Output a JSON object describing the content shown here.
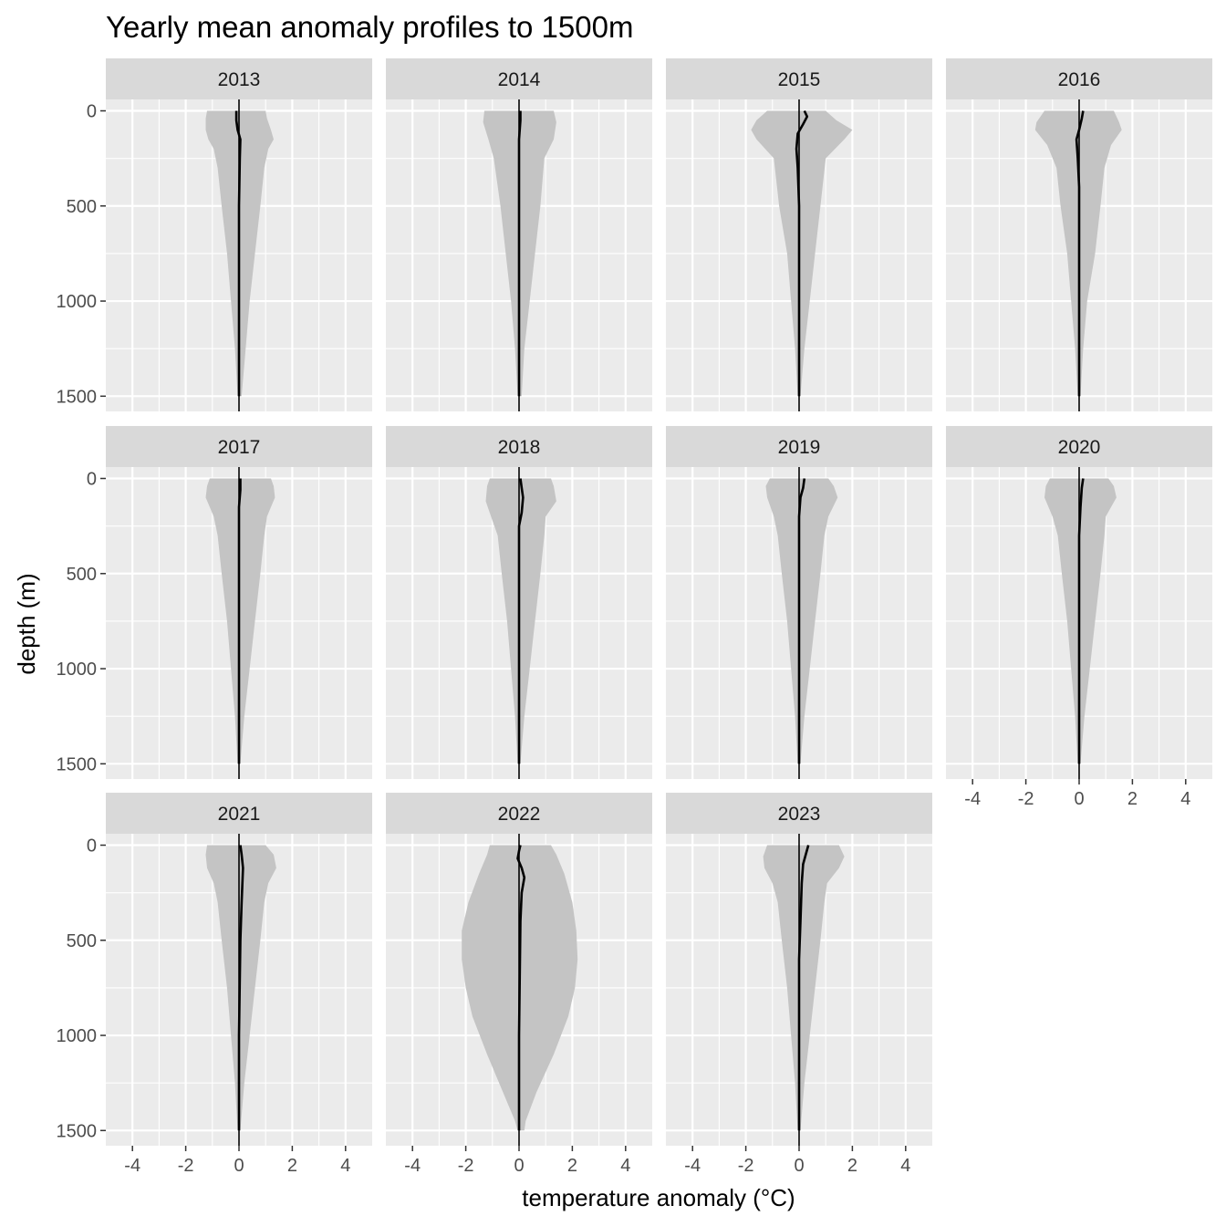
{
  "chart_data": {
    "type": "area",
    "title": "Yearly mean anomaly profiles to 1500m",
    "xlabel": "temperature anomaly (°C)",
    "ylabel": "depth (m)",
    "xlim": [
      -5,
      5
    ],
    "ylim": [
      -60,
      1580
    ],
    "y_reversed": true,
    "grid": true,
    "legend": "none",
    "x_ticks": [
      -4,
      -2,
      0,
      2,
      4
    ],
    "x_tick_labels": [
      "-4",
      "-2",
      "0",
      "2",
      "4"
    ],
    "y_ticks": [
      0,
      500,
      1000,
      1500
    ],
    "y_tick_labels": [
      "0",
      "500",
      "1000",
      "1500"
    ],
    "colors": {
      "panel_bg": "#ebebeb",
      "strip_bg": "#d9d9d9",
      "spread_fill": "#c4c4c4",
      "mean_line": "#000000",
      "grid": "#ffffff"
    },
    "series_description": [
      "spread envelope (shaded)",
      "mean anomaly profile (line)"
    ],
    "panels": [
      {
        "year": "2013",
        "envelope": [
          [
            0,
            -1.2,
            1.0
          ],
          [
            40,
            -1.25,
            1.05
          ],
          [
            100,
            -1.25,
            1.2
          ],
          [
            150,
            -1.15,
            1.3
          ],
          [
            200,
            -0.95,
            1.1
          ],
          [
            300,
            -0.8,
            0.95
          ],
          [
            500,
            -0.65,
            0.8
          ],
          [
            750,
            -0.45,
            0.6
          ],
          [
            1000,
            -0.3,
            0.4
          ],
          [
            1250,
            -0.15,
            0.25
          ],
          [
            1500,
            -0.05,
            0.1
          ]
        ],
        "mean": [
          [
            0,
            -0.1
          ],
          [
            50,
            -0.1
          ],
          [
            100,
            -0.05
          ],
          [
            150,
            0.05
          ],
          [
            250,
            0.03
          ],
          [
            500,
            0.0
          ],
          [
            1000,
            0.0
          ],
          [
            1500,
            0.0
          ]
        ]
      },
      {
        "year": "2014",
        "envelope": [
          [
            0,
            -1.3,
            1.3
          ],
          [
            60,
            -1.35,
            1.4
          ],
          [
            150,
            -1.15,
            1.3
          ],
          [
            250,
            -0.95,
            0.95
          ],
          [
            500,
            -0.7,
            0.8
          ],
          [
            750,
            -0.5,
            0.6
          ],
          [
            1000,
            -0.3,
            0.4
          ],
          [
            1250,
            -0.15,
            0.2
          ],
          [
            1500,
            -0.05,
            0.1
          ]
        ],
        "mean": [
          [
            0,
            0.05
          ],
          [
            50,
            0.05
          ],
          [
            150,
            0.0
          ],
          [
            300,
            0.0
          ],
          [
            1500,
            0.0
          ]
        ]
      },
      {
        "year": "2015",
        "envelope": [
          [
            0,
            -1.2,
            1.0
          ],
          [
            50,
            -1.6,
            1.4
          ],
          [
            100,
            -1.8,
            2.0
          ],
          [
            150,
            -1.6,
            1.7
          ],
          [
            250,
            -0.95,
            1.0
          ],
          [
            500,
            -0.75,
            0.8
          ],
          [
            750,
            -0.45,
            0.6
          ],
          [
            1000,
            -0.3,
            0.4
          ],
          [
            1250,
            -0.15,
            0.2
          ],
          [
            1500,
            -0.05,
            0.05
          ]
        ],
        "mean": [
          [
            0,
            0.2
          ],
          [
            30,
            0.3
          ],
          [
            70,
            0.15
          ],
          [
            120,
            -0.05
          ],
          [
            200,
            -0.1
          ],
          [
            300,
            -0.05
          ],
          [
            500,
            0.0
          ],
          [
            1000,
            0.0
          ],
          [
            1500,
            0.0
          ]
        ]
      },
      {
        "year": "2016",
        "envelope": [
          [
            0,
            -1.3,
            1.3
          ],
          [
            60,
            -1.6,
            1.5
          ],
          [
            100,
            -1.65,
            1.6
          ],
          [
            180,
            -1.2,
            1.2
          ],
          [
            300,
            -0.85,
            0.95
          ],
          [
            500,
            -0.7,
            0.8
          ],
          [
            750,
            -0.45,
            0.6
          ],
          [
            1000,
            -0.3,
            0.3
          ],
          [
            1250,
            -0.15,
            0.15
          ],
          [
            1500,
            -0.05,
            0.05
          ]
        ],
        "mean": [
          [
            0,
            0.15
          ],
          [
            40,
            0.1
          ],
          [
            100,
            0.0
          ],
          [
            150,
            -0.1
          ],
          [
            250,
            -0.05
          ],
          [
            400,
            0.0
          ],
          [
            1500,
            0.0
          ]
        ]
      },
      {
        "year": "2017",
        "envelope": [
          [
            0,
            -1.1,
            1.2
          ],
          [
            40,
            -1.2,
            1.3
          ],
          [
            100,
            -1.25,
            1.35
          ],
          [
            200,
            -0.95,
            1.05
          ],
          [
            300,
            -0.8,
            0.95
          ],
          [
            500,
            -0.65,
            0.8
          ],
          [
            750,
            -0.45,
            0.6
          ],
          [
            1000,
            -0.3,
            0.4
          ],
          [
            1250,
            -0.15,
            0.2
          ],
          [
            1500,
            -0.05,
            0.05
          ]
        ],
        "mean": [
          [
            0,
            0.05
          ],
          [
            60,
            0.05
          ],
          [
            150,
            0.0
          ],
          [
            300,
            0.0
          ],
          [
            1500,
            0.0
          ]
        ]
      },
      {
        "year": "2018",
        "envelope": [
          [
            0,
            -1.1,
            1.2
          ],
          [
            40,
            -1.2,
            1.3
          ],
          [
            120,
            -1.25,
            1.4
          ],
          [
            200,
            -1.05,
            1.0
          ],
          [
            300,
            -0.8,
            0.95
          ],
          [
            500,
            -0.65,
            0.8
          ],
          [
            750,
            -0.45,
            0.6
          ],
          [
            1000,
            -0.3,
            0.4
          ],
          [
            1250,
            -0.15,
            0.2
          ],
          [
            1500,
            -0.05,
            0.05
          ]
        ],
        "mean": [
          [
            0,
            0.05
          ],
          [
            50,
            0.1
          ],
          [
            100,
            0.15
          ],
          [
            180,
            0.1
          ],
          [
            250,
            0.0
          ],
          [
            1500,
            0.0
          ]
        ]
      },
      {
        "year": "2019",
        "envelope": [
          [
            0,
            -1.1,
            1.1
          ],
          [
            40,
            -1.25,
            1.3
          ],
          [
            100,
            -1.2,
            1.45
          ],
          [
            200,
            -0.95,
            1.1
          ],
          [
            300,
            -0.8,
            0.95
          ],
          [
            500,
            -0.65,
            0.8
          ],
          [
            750,
            -0.45,
            0.6
          ],
          [
            1000,
            -0.3,
            0.4
          ],
          [
            1250,
            -0.15,
            0.2
          ],
          [
            1500,
            -0.05,
            0.05
          ]
        ],
        "mean": [
          [
            0,
            0.2
          ],
          [
            50,
            0.15
          ],
          [
            100,
            0.05
          ],
          [
            200,
            0.0
          ],
          [
            500,
            0.0
          ],
          [
            1500,
            0.0
          ]
        ]
      },
      {
        "year": "2020",
        "envelope": [
          [
            0,
            -1.1,
            1.1
          ],
          [
            40,
            -1.25,
            1.3
          ],
          [
            100,
            -1.3,
            1.4
          ],
          [
            200,
            -1.0,
            1.0
          ],
          [
            300,
            -0.8,
            0.95
          ],
          [
            500,
            -0.65,
            0.8
          ],
          [
            750,
            -0.45,
            0.6
          ],
          [
            1000,
            -0.3,
            0.4
          ],
          [
            1250,
            -0.15,
            0.2
          ],
          [
            1500,
            -0.05,
            0.05
          ]
        ],
        "mean": [
          [
            0,
            0.15
          ],
          [
            50,
            0.1
          ],
          [
            150,
            0.05
          ],
          [
            300,
            0.0
          ],
          [
            1500,
            0.0
          ]
        ]
      },
      {
        "year": "2021",
        "envelope": [
          [
            0,
            -1.2,
            1.0
          ],
          [
            50,
            -1.25,
            1.3
          ],
          [
            120,
            -1.2,
            1.4
          ],
          [
            200,
            -0.95,
            1.1
          ],
          [
            300,
            -0.8,
            0.95
          ],
          [
            500,
            -0.65,
            0.8
          ],
          [
            750,
            -0.45,
            0.6
          ],
          [
            1000,
            -0.3,
            0.4
          ],
          [
            1250,
            -0.15,
            0.2
          ],
          [
            1500,
            -0.05,
            0.05
          ]
        ],
        "mean": [
          [
            0,
            0.05
          ],
          [
            50,
            0.1
          ],
          [
            120,
            0.15
          ],
          [
            300,
            0.1
          ],
          [
            500,
            0.05
          ],
          [
            1000,
            0.0
          ],
          [
            1500,
            0.0
          ]
        ]
      },
      {
        "year": "2022",
        "envelope": [
          [
            0,
            -1.1,
            1.2
          ],
          [
            50,
            -1.2,
            1.4
          ],
          [
            150,
            -1.5,
            1.7
          ],
          [
            300,
            -1.9,
            2.0
          ],
          [
            450,
            -2.15,
            2.15
          ],
          [
            600,
            -2.15,
            2.2
          ],
          [
            750,
            -2.0,
            2.1
          ],
          [
            900,
            -1.75,
            1.85
          ],
          [
            1100,
            -1.2,
            1.3
          ],
          [
            1300,
            -0.6,
            0.65
          ],
          [
            1450,
            -0.15,
            0.25
          ],
          [
            1500,
            -0.05,
            0.2
          ]
        ],
        "mean": [
          [
            0,
            0.05
          ],
          [
            30,
            0.0
          ],
          [
            70,
            -0.05
          ],
          [
            120,
            0.1
          ],
          [
            170,
            0.2
          ],
          [
            250,
            0.1
          ],
          [
            400,
            0.05
          ],
          [
            1000,
            0.0
          ],
          [
            1500,
            0.0
          ]
        ]
      },
      {
        "year": "2023",
        "envelope": [
          [
            0,
            -1.2,
            1.5
          ],
          [
            60,
            -1.35,
            1.7
          ],
          [
            120,
            -1.3,
            1.5
          ],
          [
            200,
            -1.0,
            1.05
          ],
          [
            300,
            -0.8,
            0.95
          ],
          [
            500,
            -0.65,
            0.8
          ],
          [
            750,
            -0.45,
            0.6
          ],
          [
            1000,
            -0.3,
            0.4
          ],
          [
            1250,
            -0.15,
            0.2
          ],
          [
            1500,
            -0.05,
            0.05
          ]
        ],
        "mean": [
          [
            0,
            0.35
          ],
          [
            50,
            0.25
          ],
          [
            100,
            0.15
          ],
          [
            200,
            0.1
          ],
          [
            400,
            0.05
          ],
          [
            600,
            0.0
          ],
          [
            1500,
            0.0
          ]
        ]
      }
    ]
  }
}
